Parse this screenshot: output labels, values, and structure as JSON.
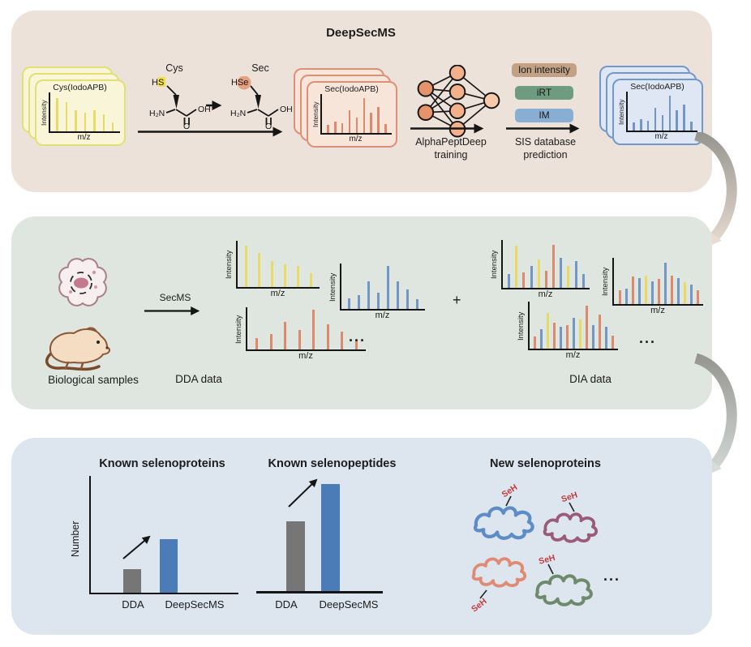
{
  "axis_labels": {
    "intensity": "Intensity",
    "mz": "m/z"
  },
  "top_panel": {
    "bg": "#ece2d9",
    "title": "DeepSecMS",
    "chem": {
      "cys_title": "Cys",
      "sec_title": "Sec",
      "hs": "HS",
      "hse": "HSe",
      "h2n": "H₂N",
      "oh": "OH",
      "o": "O",
      "hs_highlight": "#f1e040",
      "hse_highlight": "#e8a080"
    },
    "nn": {
      "colors": {
        "input": "#e5936b",
        "hidden": "#f2b08b",
        "output": "#f7c9ab"
      },
      "label_line1": "AlphaPeptDeep",
      "label_line2": "training"
    },
    "badges": [
      {
        "label": "Ion intensity",
        "bg": "#c2a285"
      },
      {
        "label": "iRT",
        "bg": "#6f9c81"
      },
      {
        "label": "IM",
        "bg": "#89aed3"
      }
    ],
    "sis_label_line1": "SIS database",
    "sis_label_line2": "prediction"
  },
  "cards": {
    "cys": {
      "label": "Cys(IodoAPB)",
      "fill": "#f8f5d8",
      "border": "#e3df75"
    },
    "sec": {
      "label": "Sec(IodoAPB)",
      "fill": "#f8e5da",
      "border": "#db9078"
    },
    "sec_pred": {
      "label": "Sec(IodoAPB)",
      "fill": "#dfe7f4",
      "border": "#7199cf"
    }
  },
  "middle_panel": {
    "bg": "#dfe6df",
    "samples_label": "Biological samples",
    "secms_label": "SecMS",
    "dda_label": "DDA data",
    "plus": "+",
    "dia_label": "DIA data",
    "dots": "..."
  },
  "bottom_panel": {
    "bg": "#dde5ee",
    "chart1_title": "Known selenoproteins",
    "chart2_title": "Known selenopeptides",
    "new_title": "New selenoproteins",
    "number_label": "Number",
    "dda": "DDA",
    "deepsecms": "DeepSecMS",
    "seh": "SeH",
    "seh_color": "#c13b3c",
    "dots": "...",
    "bar_colors": {
      "dda": "#767676",
      "deepsecms": "#4b7cb8"
    },
    "proteins": [
      {
        "color": "#5d8cc7"
      },
      {
        "color": "#9a5a79"
      },
      {
        "color": "#e08a74"
      },
      {
        "color": "#6d8a6d"
      }
    ]
  },
  "flow_arrows": {
    "start": "#95948f",
    "end_top": "#e9ddd3",
    "end_bottom": "#d5dcd9"
  },
  "spectra": {
    "palette": {
      "y": "#e7da66",
      "o": "#dc8a6e",
      "b": "#7296c6"
    },
    "card_cys": {
      "color": "y",
      "heights": [
        0.85,
        0.74,
        0.54,
        0.48,
        0.54,
        0.44,
        0.22
      ]
    },
    "card_sec": {
      "color": "o",
      "heights": [
        0.2,
        0.3,
        0.26,
        0.58,
        0.4,
        0.9,
        0.52,
        0.66,
        0.22
      ]
    },
    "card_sec_pred": {
      "color": "b",
      "heights": [
        0.2,
        0.3,
        0.26,
        0.58,
        0.4,
        0.9,
        0.52,
        0.66,
        0.22
      ]
    },
    "dda_yellow": {
      "color": "y",
      "heights": [
        0.9,
        0.74,
        0.56,
        0.5,
        0.46,
        0.3
      ]
    },
    "dda_blue": {
      "color": "b",
      "heights": [
        0.24,
        0.3,
        0.6,
        0.36,
        0.95,
        0.6,
        0.42,
        0.22
      ]
    },
    "dda_orange": {
      "color": "o",
      "heights": [
        0.26,
        0.36,
        0.66,
        0.46,
        0.95,
        0.6,
        0.42,
        0.22
      ]
    },
    "dia_1": {
      "bars": [
        [
          "b",
          0.28
        ],
        [
          "y",
          0.88
        ],
        [
          "o",
          0.32
        ],
        [
          "b",
          0.46
        ],
        [
          "y",
          0.6
        ],
        [
          "o",
          0.36
        ],
        [
          "o",
          0.9
        ],
        [
          "b",
          0.62
        ],
        [
          "y",
          0.46
        ],
        [
          "b",
          0.56
        ],
        [
          "b",
          0.28
        ]
      ]
    },
    "dia_2": {
      "bars": [
        [
          "o",
          0.3
        ],
        [
          "b",
          0.34
        ],
        [
          "o",
          0.6
        ],
        [
          "b",
          0.56
        ],
        [
          "y",
          0.62
        ],
        [
          "b",
          0.5
        ],
        [
          "o",
          0.54
        ],
        [
          "b",
          0.9
        ],
        [
          "o",
          0.62
        ],
        [
          "b",
          0.56
        ],
        [
          "y",
          0.48
        ],
        [
          "b",
          0.42
        ],
        [
          "o",
          0.3
        ]
      ]
    },
    "dia_3": {
      "bars": [
        [
          "o",
          0.26
        ],
        [
          "b",
          0.42
        ],
        [
          "y",
          0.76
        ],
        [
          "o",
          0.56
        ],
        [
          "b",
          0.46
        ],
        [
          "o",
          0.5
        ],
        [
          "b",
          0.66
        ],
        [
          "y",
          0.62
        ],
        [
          "o",
          0.92
        ],
        [
          "b",
          0.5
        ],
        [
          "o",
          0.72
        ],
        [
          "b",
          0.46
        ],
        [
          "o",
          0.28
        ]
      ]
    }
  },
  "chart_data": [
    {
      "type": "bar",
      "title": "Known selenoproteins",
      "categories": [
        "DDA",
        "DeepSecMS"
      ],
      "values": [
        0.2,
        0.46
      ],
      "ylabel": "Number",
      "ylim": [
        0,
        1
      ],
      "note_axis": "qualitative axis, no tick values shown"
    },
    {
      "type": "bar",
      "title": "Known selenopeptides",
      "categories": [
        "DDA",
        "DeepSecMS"
      ],
      "values": [
        0.6,
        0.92
      ],
      "ylabel": "Number",
      "ylim": [
        0,
        1
      ],
      "note_axis": "qualitative axis, no tick values shown"
    }
  ]
}
